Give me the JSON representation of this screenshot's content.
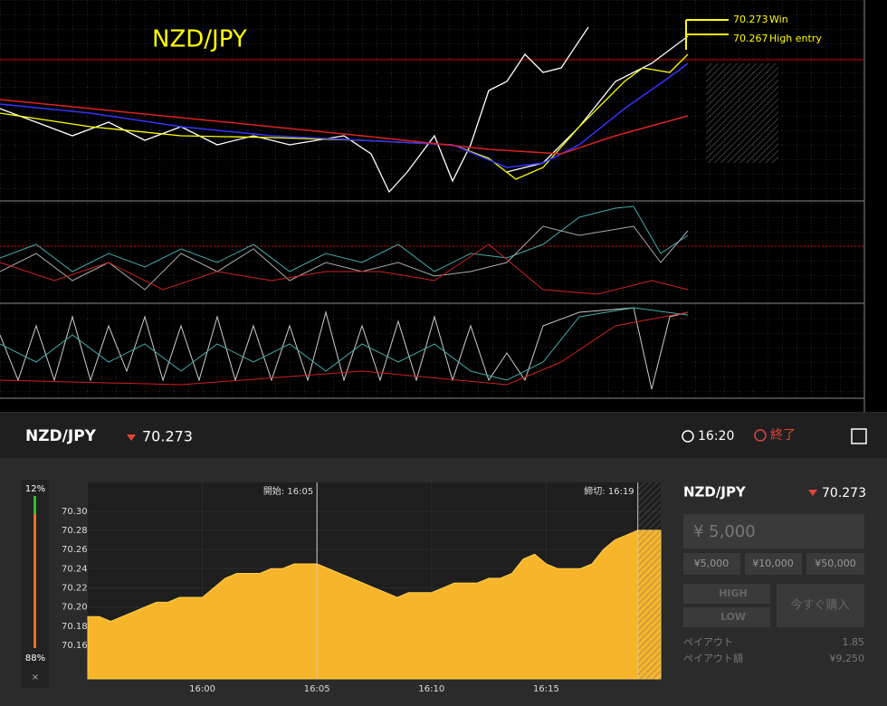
{
  "mt4": {
    "title": "NZD/JPY",
    "annotations": [
      {
        "price": "70.273",
        "label": "Win"
      },
      {
        "price": "70.267",
        "label": "High entry"
      }
    ]
  },
  "header": {
    "symbol": "NZD/JPY",
    "price": "70.273",
    "time": "16:20",
    "status": "終了"
  },
  "sentiment": {
    "high": "12%",
    "low": "88%",
    "close": "×"
  },
  "panel": {
    "symbol": "NZD/JPY",
    "price": "70.273",
    "amount": "¥ 5,000",
    "presets": [
      "¥5,000",
      "¥10,000",
      "¥50,000"
    ],
    "high": "HIGH",
    "low": "LOW",
    "buy": "今すぐ購入",
    "payout_label": "ペイアウト",
    "payout": "1.85",
    "payout_amount_label": "ペイアウト額",
    "payout_amount": "¥9,250"
  },
  "chart_data": {
    "type": "area",
    "color": "#f7b52c",
    "categories": [
      null,
      null,
      null,
      null,
      null,
      null,
      null,
      null,
      null,
      null,
      "16:00",
      null,
      null,
      null,
      null,
      null,
      null,
      null,
      null,
      null,
      "16:05",
      null,
      null,
      null,
      null,
      null,
      null,
      null,
      null,
      null,
      "16:10",
      null,
      null,
      null,
      null,
      null,
      null,
      null,
      null,
      null,
      "16:15",
      null,
      null,
      null,
      null,
      null,
      null,
      null,
      null,
      null,
      null
    ],
    "values": [
      70.19,
      70.19,
      70.185,
      70.19,
      70.195,
      70.2,
      70.205,
      70.205,
      70.21,
      70.21,
      70.21,
      70.22,
      70.23,
      70.235,
      70.235,
      70.235,
      70.24,
      70.24,
      70.245,
      70.245,
      70.245,
      70.24,
      70.235,
      70.23,
      70.225,
      70.22,
      70.215,
      70.21,
      70.215,
      70.215,
      70.215,
      70.22,
      70.225,
      70.225,
      70.225,
      70.23,
      70.23,
      70.235,
      70.25,
      70.255,
      70.245,
      70.24,
      70.24,
      70.24,
      70.245,
      70.26,
      70.27,
      70.275,
      70.28,
      70.28,
      70.28
    ],
    "ylim": [
      70.125,
      70.33
    ],
    "yticks": [
      {
        "value": 70.3,
        "label": "70.30"
      },
      70.28,
      70.26,
      70.24,
      70.22,
      {
        "value": 70.2,
        "label": "70.20"
      },
      70.18,
      70.16
    ],
    "markers": [
      {
        "label": "開始: 16:05",
        "index": 20
      },
      {
        "label": "締切: 16:19",
        "index": 48
      }
    ]
  }
}
